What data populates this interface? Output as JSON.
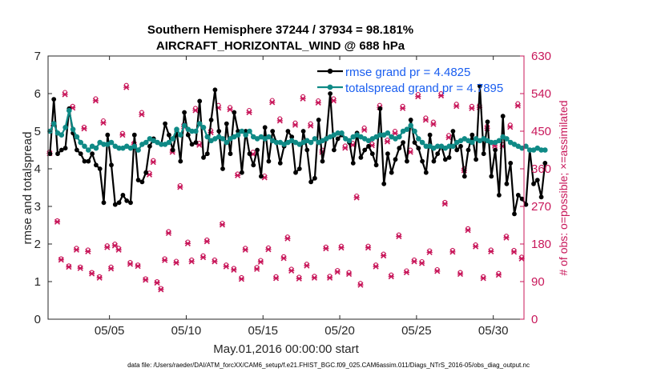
{
  "colors": {
    "rmse": "#000000",
    "spread": "#0f8a86",
    "obs": "#c8175a",
    "legend_text": "#1a5ef0",
    "axis": "#262626"
  },
  "chart_data": {
    "type": "line",
    "title_line1": "Southern Hemisphere 37244 / 37934 = 98.181%",
    "title_line2": "AIRCRAFT_HORIZONTAL_WIND @ 688 hPa",
    "ylabel": "rmse and totalspread",
    "ylabel_right": "# of obs: o=possible; ×=assimilated",
    "xlabel": "May.01,2016 00:00:00 start",
    "footnote": "data file: /Users/raeder/DAI/ATM_forcXX/CAM6_setup/f.e21.FHIST_BGC.f09_025.CAM6assim.011/Diags_NTrS_2016-05/obs_diag_output.nc",
    "xlim": [
      1,
      32
    ],
    "ylim": [
      0,
      7
    ],
    "ylim_right": [
      0,
      630
    ],
    "xticks": [
      5,
      10,
      15,
      20,
      25,
      30
    ],
    "xtick_labels": [
      "05/05",
      "05/10",
      "05/15",
      "05/20",
      "05/25",
      "05/30"
    ],
    "yticks": [
      0,
      1,
      2,
      3,
      4,
      5,
      6,
      7
    ],
    "yticks_right": [
      0,
      90,
      180,
      270,
      360,
      450,
      540,
      630
    ],
    "legend": [
      "rmse grand pr = 4.4825",
      "totalspread grand pr = 4.7895"
    ],
    "legend_position": "top-right",
    "series": [
      {
        "name": "rmse",
        "x_start": 1.125,
        "x_step": 0.25,
        "values": [
          4.4,
          5.85,
          4.4,
          4.5,
          4.55,
          5.6,
          4.95,
          4.5,
          4.4,
          4.2,
          4.2,
          4.4,
          4.1,
          4.0,
          3.1,
          4.9,
          4.1,
          3.05,
          3.1,
          3.3,
          3.15,
          3.1,
          4.9,
          3.7,
          3.65,
          3.9,
          4.6,
          4.8,
          4.7,
          4.65,
          5.2,
          4.9,
          4.5,
          5.0,
          4.2,
          5.5,
          4.9,
          4.65,
          4.7,
          5.8,
          4.3,
          4.4,
          5.3,
          6.1,
          5.0,
          4.0,
          5.2,
          4.4,
          5.5,
          5.0,
          3.9,
          5.0,
          4.4,
          4.1,
          4.5,
          3.8,
          5.1,
          4.2,
          5.0,
          4.7,
          4.15,
          4.6,
          5.0,
          4.85,
          3.9,
          4.0,
          5.0,
          4.5,
          3.65,
          3.75,
          5.3,
          4.2,
          4.8,
          6.0,
          4.5,
          4.8,
          4.9,
          4.8,
          4.7,
          4.15,
          4.95,
          4.3,
          4.5,
          4.6,
          4.4,
          4.1,
          5.6,
          3.6,
          4.4,
          3.9,
          4.25,
          4.55,
          4.7,
          4.2,
          5.3,
          4.7,
          4.55,
          4.2,
          3.9,
          4.9,
          4.2,
          4.4,
          4.6,
          4.25,
          4.3,
          5.0,
          4.5,
          4.6,
          3.8,
          4.5,
          4.9,
          4.25,
          6.2,
          4.4,
          5.25,
          3.8,
          4.5,
          3.3,
          5.4,
          3.6,
          4.15,
          2.8,
          3.3,
          3.2,
          3.05,
          4.5,
          3.6,
          3.7,
          3.25,
          4.15
        ]
      },
      {
        "name": "totalspread",
        "x_start": 1.125,
        "x_step": 0.25,
        "values": [
          5.0,
          5.2,
          4.95,
          4.9,
          5.1,
          5.55,
          5.05,
          4.85,
          4.7,
          4.6,
          4.5,
          4.6,
          4.55,
          4.7,
          4.65,
          4.65,
          4.7,
          4.6,
          4.55,
          4.55,
          4.6,
          4.55,
          4.6,
          4.5,
          4.65,
          4.7,
          4.8,
          4.75,
          4.7,
          4.65,
          4.65,
          4.7,
          4.8,
          5.05,
          4.9,
          5.15,
          5.05,
          5.0,
          5.0,
          5.2,
          5.1,
          4.85,
          4.75,
          4.8,
          4.85,
          4.8,
          4.7,
          4.8,
          4.85,
          4.9,
          5.0,
          4.9,
          5.0,
          4.85,
          4.8,
          4.85,
          4.8,
          4.85,
          4.75,
          4.7,
          4.7,
          4.65,
          4.7,
          4.75,
          4.7,
          4.65,
          4.7,
          4.75,
          4.7,
          4.8,
          4.7,
          4.75,
          4.8,
          4.85,
          4.9,
          4.95,
          4.95,
          4.8,
          4.75,
          4.85,
          4.9,
          4.85,
          4.8,
          4.75,
          4.8,
          4.85,
          4.9,
          4.9,
          4.95,
          4.85,
          4.8,
          4.85,
          5.0,
          5.05,
          5.15,
          5.0,
          4.8,
          4.7,
          4.6,
          4.6,
          4.55,
          4.6,
          4.6,
          4.55,
          4.6,
          4.6,
          4.7,
          4.75,
          4.8,
          4.75,
          4.7,
          4.8,
          4.75,
          4.8,
          4.75,
          4.7,
          4.7,
          4.75,
          4.85,
          4.8,
          4.7,
          4.65,
          4.6,
          4.55,
          4.6,
          4.5,
          4.5,
          4.55,
          4.5,
          4.5
        ]
      },
      {
        "name": "obs possible (o)",
        "axis": "right",
        "x": [
          1.1,
          1.35,
          1.6,
          1.85,
          2.1,
          2.35,
          2.6,
          2.85,
          3.1,
          3.35,
          3.6,
          3.85,
          4.1,
          4.35,
          4.6,
          4.85,
          5.1,
          5.35,
          5.6,
          5.85,
          6.1,
          6.35,
          6.6,
          6.85,
          7.1,
          7.35,
          7.6,
          7.85,
          8.1,
          8.35,
          8.6,
          8.85,
          9.1,
          9.35,
          9.6,
          9.85,
          10.1,
          10.35,
          10.6,
          10.85,
          11.1,
          11.35,
          11.6,
          11.85,
          12.1,
          12.35,
          12.6,
          12.85,
          13.1,
          13.35,
          13.6,
          13.85,
          14.1,
          14.35,
          14.6,
          14.85,
          15.1,
          15.35,
          15.6,
          15.85,
          16.1,
          16.35,
          16.6,
          16.85,
          17.1,
          17.35,
          17.6,
          17.85,
          18.1,
          18.35,
          18.6,
          18.85,
          19.1,
          19.35,
          19.6,
          19.85,
          20.1,
          20.35,
          20.6,
          20.85,
          21.1,
          21.35,
          21.6,
          21.85,
          22.1,
          22.35,
          22.6,
          22.85,
          23.1,
          23.35,
          23.6,
          23.85,
          24.1,
          24.35,
          24.6,
          24.85,
          25.1,
          25.35,
          25.6,
          25.85,
          26.1,
          26.35,
          26.6,
          26.85,
          27.1,
          27.35,
          27.6,
          27.85,
          28.1,
          28.35,
          28.6,
          28.85,
          29.1,
          29.35,
          29.6,
          29.85,
          30.1,
          30.35,
          30.6,
          30.85,
          31.1,
          31.35,
          31.6,
          31.85
        ],
        "values": [
          400,
          468,
          236,
          145,
          543,
          128,
          510,
          170,
          125,
          460,
          166,
          112,
          528,
          102,
          475,
          176,
          125,
          180,
          170,
          445,
          560,
          136,
          422,
          130,
          495,
          97,
          350,
          380,
          90,
          74,
          145,
          210,
          405,
          139,
          320,
          466,
          185,
          142,
          505,
          421,
          152,
          190,
          452,
          142,
          512,
          230,
          130,
          507,
          122,
          348,
          100,
          170,
          500,
          400,
          124,
          141,
          343,
          171,
          524,
          102,
          480,
          150,
          197,
          120,
          470,
          101,
          533,
          132,
          468,
          103,
          523,
          405,
          173,
          103,
          528,
          117,
          175,
          415,
          112,
          421,
          295,
          86,
          458,
          175,
          420,
          130,
          512,
          156,
          429,
          106,
          450,
          202,
          510,
          116,
          405,
          142,
          538,
          138,
          482,
          164,
          472,
          119,
          540,
          280,
          440,
          165,
          515,
          112,
          360,
          217,
          510,
          178,
          512,
          102,
          462,
          166,
          420,
          110,
          418,
          199,
          465,
          165,
          516,
          149
        ]
      },
      {
        "name": "obs assimilated (x)",
        "axis": "right",
        "x": [
          1.1,
          1.35,
          1.6,
          1.85,
          2.1,
          2.35,
          2.6,
          2.85,
          3.1,
          3.35,
          3.6,
          3.85,
          4.1,
          4.35,
          4.6,
          4.85,
          5.1,
          5.35,
          5.6,
          5.85,
          6.1,
          6.35,
          6.6,
          6.85,
          7.1,
          7.35,
          7.6,
          7.85,
          8.1,
          8.35,
          8.6,
          8.85,
          9.1,
          9.35,
          9.6,
          9.85,
          10.1,
          10.35,
          10.6,
          10.85,
          11.1,
          11.35,
          11.6,
          11.85,
          12.1,
          12.35,
          12.6,
          12.85,
          13.1,
          13.35,
          13.6,
          13.85,
          14.1,
          14.35,
          14.6,
          14.85,
          15.1,
          15.35,
          15.6,
          15.85,
          16.1,
          16.35,
          16.6,
          16.85,
          17.1,
          17.35,
          17.6,
          17.85,
          18.1,
          18.35,
          18.6,
          18.85,
          19.1,
          19.35,
          19.6,
          19.85,
          20.1,
          20.35,
          20.6,
          20.85,
          21.1,
          21.35,
          21.6,
          21.85,
          22.1,
          22.35,
          22.6,
          22.85,
          23.1,
          23.35,
          23.6,
          23.85,
          24.1,
          24.35,
          24.6,
          24.85,
          25.1,
          25.35,
          25.6,
          25.85,
          26.1,
          26.35,
          26.6,
          26.85,
          27.1,
          27.35,
          27.6,
          27.85,
          28.1,
          28.35,
          28.6,
          28.85,
          29.1,
          29.35,
          29.6,
          29.85,
          30.1,
          30.35,
          30.6,
          30.85,
          31.1,
          31.35,
          31.6,
          31.85
        ],
        "values": [
          397,
          464,
          233,
          142,
          538,
          125,
          506,
          166,
          122,
          456,
          162,
          109,
          523,
          99,
          470,
          172,
          121,
          176,
          166,
          441,
          555,
          132,
          418,
          127,
          490,
          94,
          346,
          376,
          87,
          71,
          141,
          206,
          400,
          135,
          316,
          461,
          181,
          138,
          500,
          417,
          148,
          186,
          447,
          138,
          506,
          226,
          126,
          502,
          118,
          344,
          96,
          166,
          495,
          395,
          120,
          137,
          339,
          167,
          519,
          98,
          475,
          146,
          193,
          116,
          465,
          97,
          528,
          128,
          463,
          99,
          518,
          400,
          169,
          99,
          523,
          113,
          171,
          410,
          108,
          417,
          291,
          82,
          453,
          171,
          416,
          126,
          507,
          152,
          425,
          102,
          445,
          198,
          505,
          112,
          400,
          138,
          533,
          134,
          477,
          160,
          467,
          115,
          535,
          276,
          435,
          161,
          510,
          108,
          356,
          213,
          505,
          174,
          507,
          98,
          457,
          162,
          415,
          106,
          414,
          195,
          460,
          161,
          511,
          145
        ]
      }
    ]
  }
}
